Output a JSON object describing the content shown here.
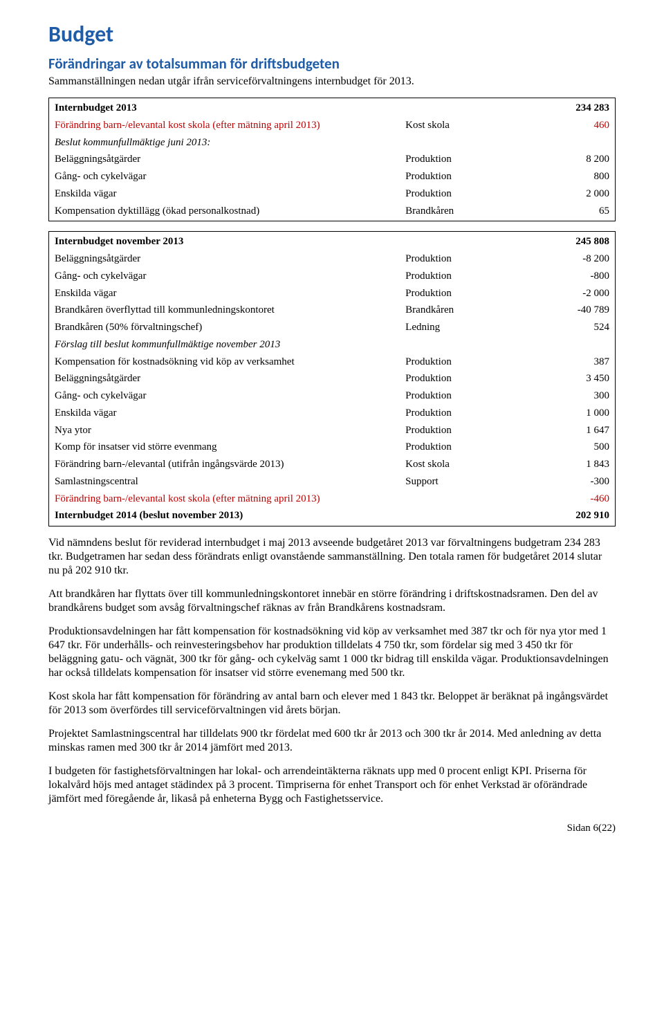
{
  "heading": {
    "title": "Budget",
    "subtitle": "Förändringar av totalsumman för driftsbudgeten",
    "intro": "Sammanställningen nedan utgår ifrån serviceförvaltningens internbudget för 2013."
  },
  "table1": {
    "rows": [
      {
        "desc": "Internbudget 2013",
        "cat": "",
        "val": "234 283",
        "bold": true,
        "italic": false,
        "red": false
      },
      {
        "desc": "Förändring barn-/elevantal kost skola (efter mätning april 2013)",
        "cat": "Kost skola",
        "val": "460",
        "bold": false,
        "italic": false,
        "red": true
      },
      {
        "desc": "Beslut kommunfullmäktige juni 2013:",
        "cat": "",
        "val": "",
        "bold": false,
        "italic": true,
        "red": false
      },
      {
        "desc": "Beläggningsåtgärder",
        "cat": "Produktion",
        "val": "8 200",
        "bold": false,
        "italic": false,
        "red": false
      },
      {
        "desc": "Gång- och cykelvägar",
        "cat": "Produktion",
        "val": "800",
        "bold": false,
        "italic": false,
        "red": false
      },
      {
        "desc": "Enskilda vägar",
        "cat": "Produktion",
        "val": "2 000",
        "bold": false,
        "italic": false,
        "red": false
      },
      {
        "desc": "Kompensation dyktillägg (ökad personalkostnad)",
        "cat": "Brandkåren",
        "val": "65",
        "bold": false,
        "italic": false,
        "red": false
      }
    ]
  },
  "table2": {
    "rows": [
      {
        "desc": "Internbudget november 2013",
        "cat": "",
        "val": "245 808",
        "bold": true,
        "italic": false,
        "red": false
      },
      {
        "desc": "Beläggningsåtgärder",
        "cat": "Produktion",
        "val": "-8 200",
        "bold": false,
        "italic": false,
        "red": false
      },
      {
        "desc": "Gång- och cykelvägar",
        "cat": "Produktion",
        "val": "-800",
        "bold": false,
        "italic": false,
        "red": false
      },
      {
        "desc": "Enskilda vägar",
        "cat": "Produktion",
        "val": "-2 000",
        "bold": false,
        "italic": false,
        "red": false
      },
      {
        "desc": "Brandkåren överflyttad till kommunledningskontoret",
        "cat": "Brandkåren",
        "val": "-40 789",
        "bold": false,
        "italic": false,
        "red": false
      },
      {
        "desc": "Brandkåren (50% förvaltningschef)",
        "cat": "Ledning",
        "val": "524",
        "bold": false,
        "italic": false,
        "red": false
      },
      {
        "desc": "Förslag till beslut kommunfullmäktige november 2013",
        "cat": "",
        "val": "",
        "bold": false,
        "italic": true,
        "red": false
      },
      {
        "desc": "Kompensation för kostnadsökning vid köp av verksamhet",
        "cat": "Produktion",
        "val": "387",
        "bold": false,
        "italic": false,
        "red": false
      },
      {
        "desc": "Beläggningsåtgärder",
        "cat": "Produktion",
        "val": "3 450",
        "bold": false,
        "italic": false,
        "red": false
      },
      {
        "desc": "Gång- och cykelvägar",
        "cat": "Produktion",
        "val": "300",
        "bold": false,
        "italic": false,
        "red": false
      },
      {
        "desc": "Enskilda vägar",
        "cat": "Produktion",
        "val": "1 000",
        "bold": false,
        "italic": false,
        "red": false
      },
      {
        "desc": "Nya ytor",
        "cat": "Produktion",
        "val": "1 647",
        "bold": false,
        "italic": false,
        "red": false
      },
      {
        "desc": "Komp för insatser vid större evenmang",
        "cat": "Produktion",
        "val": "500",
        "bold": false,
        "italic": false,
        "red": false
      },
      {
        "desc": "Förändring barn-/elevantal (utifrån ingångsvärde 2013)",
        "cat": "Kost skola",
        "val": "1 843",
        "bold": false,
        "italic": false,
        "red": false
      },
      {
        "desc": "Samlastningscentral",
        "cat": "Support",
        "val": "-300",
        "bold": false,
        "italic": false,
        "red": false
      },
      {
        "desc": "Förändring barn-/elevantal kost skola (efter mätning april 2013)",
        "cat": "",
        "val": "-460",
        "bold": false,
        "italic": false,
        "red": true
      },
      {
        "desc": "Internbudget 2014 (beslut november 2013)",
        "cat": "",
        "val": "202 910",
        "bold": true,
        "italic": false,
        "red": false
      }
    ]
  },
  "paragraphs": {
    "p1": "Vid nämndens beslut för reviderad internbudget i maj 2013 avseende budgetåret 2013 var förvaltningens budgetram 234 283 tkr. Budgetramen har sedan dess förändrats enligt ovanstående sammanställning. Den totala ramen för budgetåret 2014 slutar nu på 202 910 tkr.",
    "p2": "Att brandkåren har flyttats över till kommunledningskontoret innebär en större förändring i driftskostnadsramen. Den del av brandkårens budget som avsåg förvaltningschef räknas av från Brandkårens kostnadsram.",
    "p3": "Produktionsavdelningen har fått kompensation för kostnadsökning vid köp av verksamhet med 387 tkr och för nya ytor med 1 647 tkr. För underhålls- och reinvesteringsbehov har produktion tilldelats 4 750 tkr, som fördelar sig med 3 450 tkr för beläggning gatu- och vägnät, 300 tkr för gång- och cykelväg samt 1 000 tkr bidrag till enskilda vägar. Produktionsavdelningen har också tilldelats kompensation för insatser vid större evenemang med 500 tkr.",
    "p4": "Kost skola har fått kompensation för förändring av antal barn och elever med 1 843 tkr. Beloppet är beräknat på ingångsvärdet för 2013 som överfördes till serviceförvaltningen vid årets början.",
    "p5": "Projektet Samlastningscentral har tilldelats 900 tkr fördelat med 600 tkr år 2013 och 300 tkr år 2014. Med anledning av detta minskas ramen med 300 tkr år 2014 jämfört med 2013.",
    "p6": "I budgeten för fastighetsförvaltningen har lokal- och arrendeintäkterna räknats upp med 0 procent enligt KPI. Priserna för lokalvård höjs med antaget städindex på 3 procent. Timpriserna för enhet Transport och för enhet Verkstad är oförändrade jämfört med föregående år, likaså på enheterna Bygg och Fastighetsservice."
  },
  "footer": {
    "text": "Sidan 6(22)"
  },
  "styling": {
    "heading_color": "#1f5ca8",
    "heading_font": "Trebuchet MS",
    "body_font": "Garamond",
    "red_text_color": "#c00000",
    "border_color": "#000000",
    "h1_fontsize": 32,
    "h2_fontsize": 21,
    "table_fontsize": 15,
    "body_fontsize": 16
  }
}
